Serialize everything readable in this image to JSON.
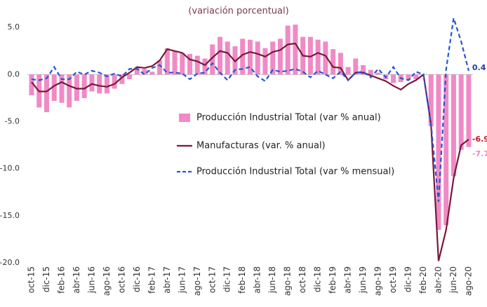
{
  "chart_data": {
    "type": "bar-line",
    "subtitle": "(variación porcentual)",
    "categories": [
      "oct-15",
      null,
      "dic-15",
      null,
      "feb-16",
      null,
      "abr-16",
      null,
      "jun-16",
      null,
      "ago-16",
      null,
      "oct-16",
      null,
      "dic-16",
      null,
      "feb-17",
      null,
      "abr-17",
      null,
      "jun-17",
      null,
      "ago-17",
      null,
      "oct-17",
      null,
      "dic-17",
      null,
      "feb-18",
      null,
      "abr-18",
      null,
      "jun-18",
      null,
      "ago-18",
      null,
      "oct-18",
      null,
      "dic-18",
      null,
      "feb-19",
      null,
      "abr-19",
      null,
      "jun-19",
      null,
      "ago-19",
      null,
      "oct-19",
      null,
      "dic-19",
      null,
      "feb-20",
      null,
      "abr-20",
      null,
      "jun-20",
      null,
      "ago-20"
    ],
    "series": [
      {
        "name": "Producción Industrial Total (var % anual)",
        "type": "bar",
        "color": "#f08ac6",
        "values": [
          -2.2,
          -3.5,
          -4.0,
          -2.8,
          -3.0,
          -3.5,
          -2.8,
          -2.5,
          -1.8,
          -2.0,
          -2.0,
          -1.5,
          -1.0,
          -0.5,
          0.8,
          0.6,
          0.3,
          1.5,
          2.8,
          2.5,
          2.3,
          2.2,
          2.0,
          1.7,
          3.2,
          4.0,
          3.5,
          3.0,
          3.8,
          3.7,
          3.5,
          2.8,
          3.5,
          3.8,
          5.2,
          5.3,
          4.0,
          4.0,
          3.7,
          3.5,
          2.7,
          2.3,
          0.8,
          1.7,
          1.0,
          0.5,
          0.2,
          -0.5,
          -0.9,
          -0.8,
          -0.6,
          -0.5,
          0.0,
          -5.5,
          -16.5,
          -16.0,
          -10.8,
          -8.0,
          -7.7
        ]
      },
      {
        "name": "Manufacturas (var. % anual)",
        "type": "line",
        "color": "#7a1838",
        "values": [
          -0.8,
          -1.8,
          -1.8,
          -1.2,
          -0.8,
          -1.2,
          -1.5,
          -1.5,
          -1.0,
          -1.2,
          -1.3,
          -1.0,
          -0.3,
          0.2,
          0.8,
          0.7,
          0.9,
          1.5,
          2.7,
          2.5,
          2.3,
          1.6,
          1.4,
          1.0,
          1.8,
          2.5,
          2.3,
          1.4,
          2.1,
          2.4,
          2.2,
          1.9,
          2.4,
          2.6,
          3.2,
          3.3,
          2.0,
          1.9,
          2.3,
          2.0,
          0.8,
          0.7,
          -0.6,
          0.2,
          0.2,
          -0.1,
          -0.4,
          -0.7,
          -1.2,
          -1.6,
          -1.0,
          -0.6,
          0.0,
          -5.3,
          -19.8,
          -16.5,
          -11.0,
          -7.5,
          -6.9
        ]
      },
      {
        "name": "Producción Industrial Total (var % mensual)",
        "type": "dashed",
        "color": "#2457d0",
        "values": [
          -0.5,
          -0.6,
          -0.4,
          0.8,
          -0.5,
          -0.5,
          0.3,
          0.0,
          0.4,
          0.2,
          -0.2,
          0.1,
          -0.2,
          0.6,
          0.6,
          0.0,
          0.7,
          1.0,
          0.2,
          0.2,
          0.1,
          -0.5,
          0.1,
          0.2,
          1.2,
          0.2,
          -0.6,
          0.5,
          0.6,
          0.8,
          -0.2,
          -0.7,
          0.5,
          0.3,
          0.4,
          0.6,
          0.3,
          -0.3,
          0.4,
          0.0,
          -0.4,
          0.3,
          -0.6,
          0.2,
          0.3,
          -0.3,
          0.6,
          -0.3,
          0.8,
          -0.4,
          -0.6,
          0.3,
          0.0,
          -5.3,
          -13.5,
          0.5,
          6.0,
          3.5,
          0.4
        ]
      }
    ],
    "end_label_colors": [
      "#f08ac6",
      "#c0182c",
      "#1f3f99"
    ],
    "ylim": [
      -20,
      6.8
    ],
    "yticks": [
      {
        "value": 5,
        "label": "5.0"
      },
      {
        "value": 0,
        "label": "0.0"
      },
      {
        "value": -5,
        "label": "-5.0"
      },
      {
        "value": -10,
        "label": "-10.0"
      },
      {
        "value": -15,
        "label": "-15.0"
      },
      {
        "value": -20,
        "label": "-20.0"
      }
    ]
  }
}
